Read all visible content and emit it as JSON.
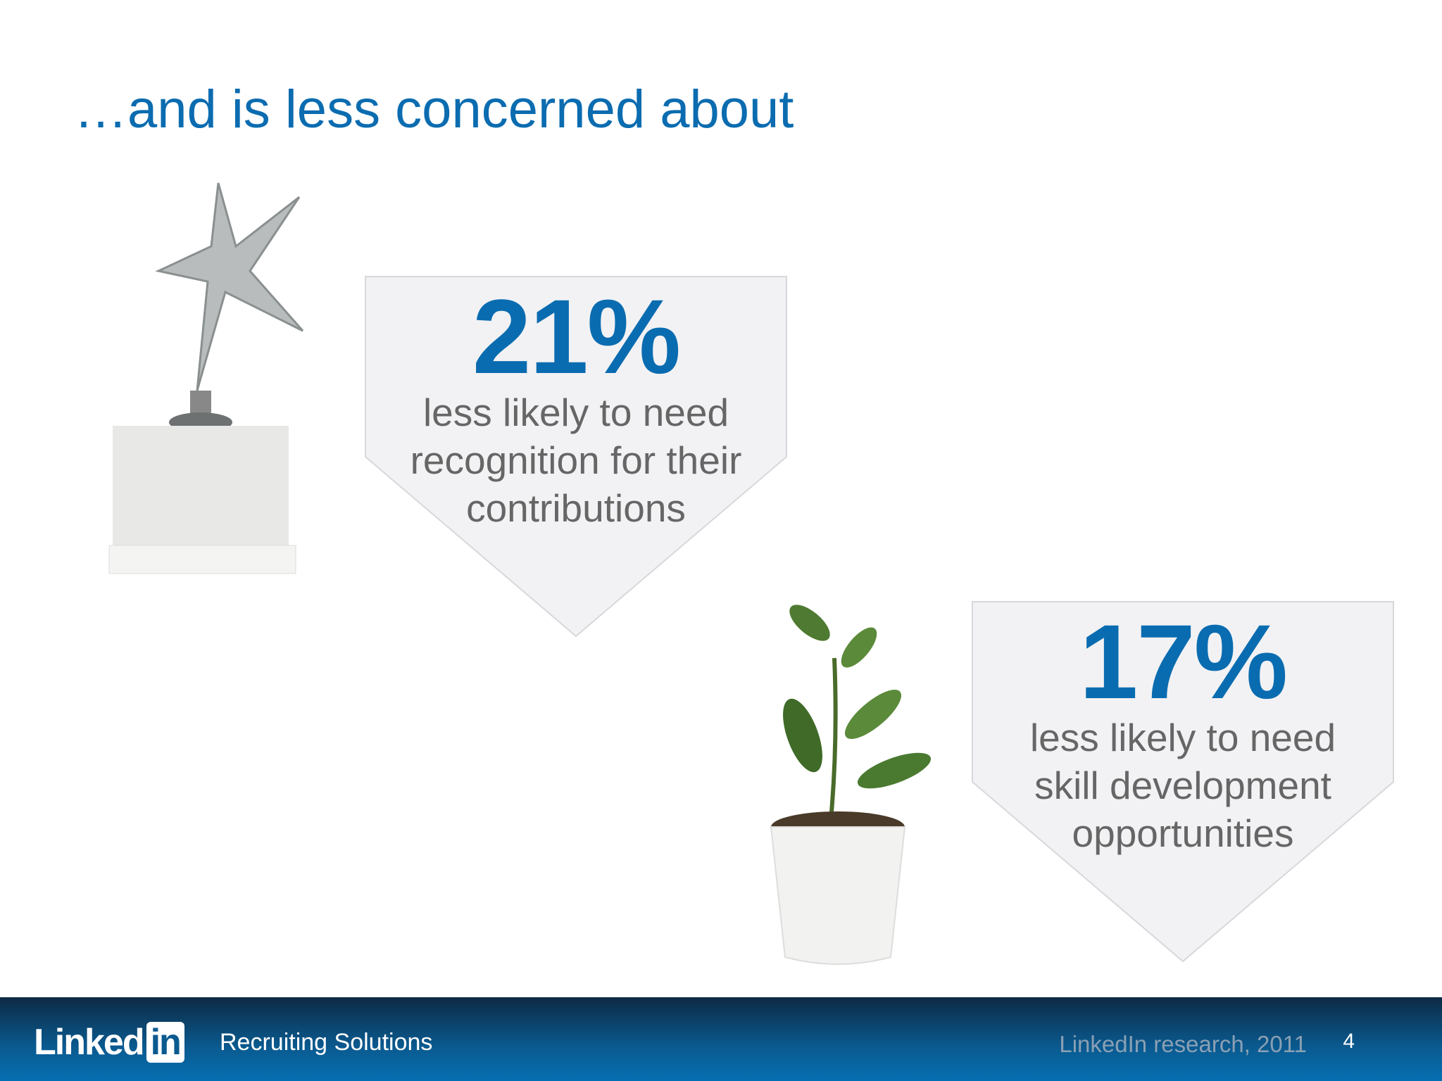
{
  "title": "…and is less concerned about",
  "stats": [
    {
      "value": "21%",
      "lines": [
        "less likely to need",
        "recognition for their",
        "contributions"
      ]
    },
    {
      "value": "17%",
      "lines": [
        "less likely to need",
        "skill development",
        "opportunities"
      ]
    }
  ],
  "footer": {
    "logo": "LinkedIn",
    "logo_a": "Linked",
    "logo_b": "in",
    "subtitle": "Recruiting Solutions",
    "source": "LinkedIn research, 2011",
    "page": "4"
  },
  "colors": {
    "accent": "#0b6cb0",
    "callout": "#f2f2f4"
  }
}
